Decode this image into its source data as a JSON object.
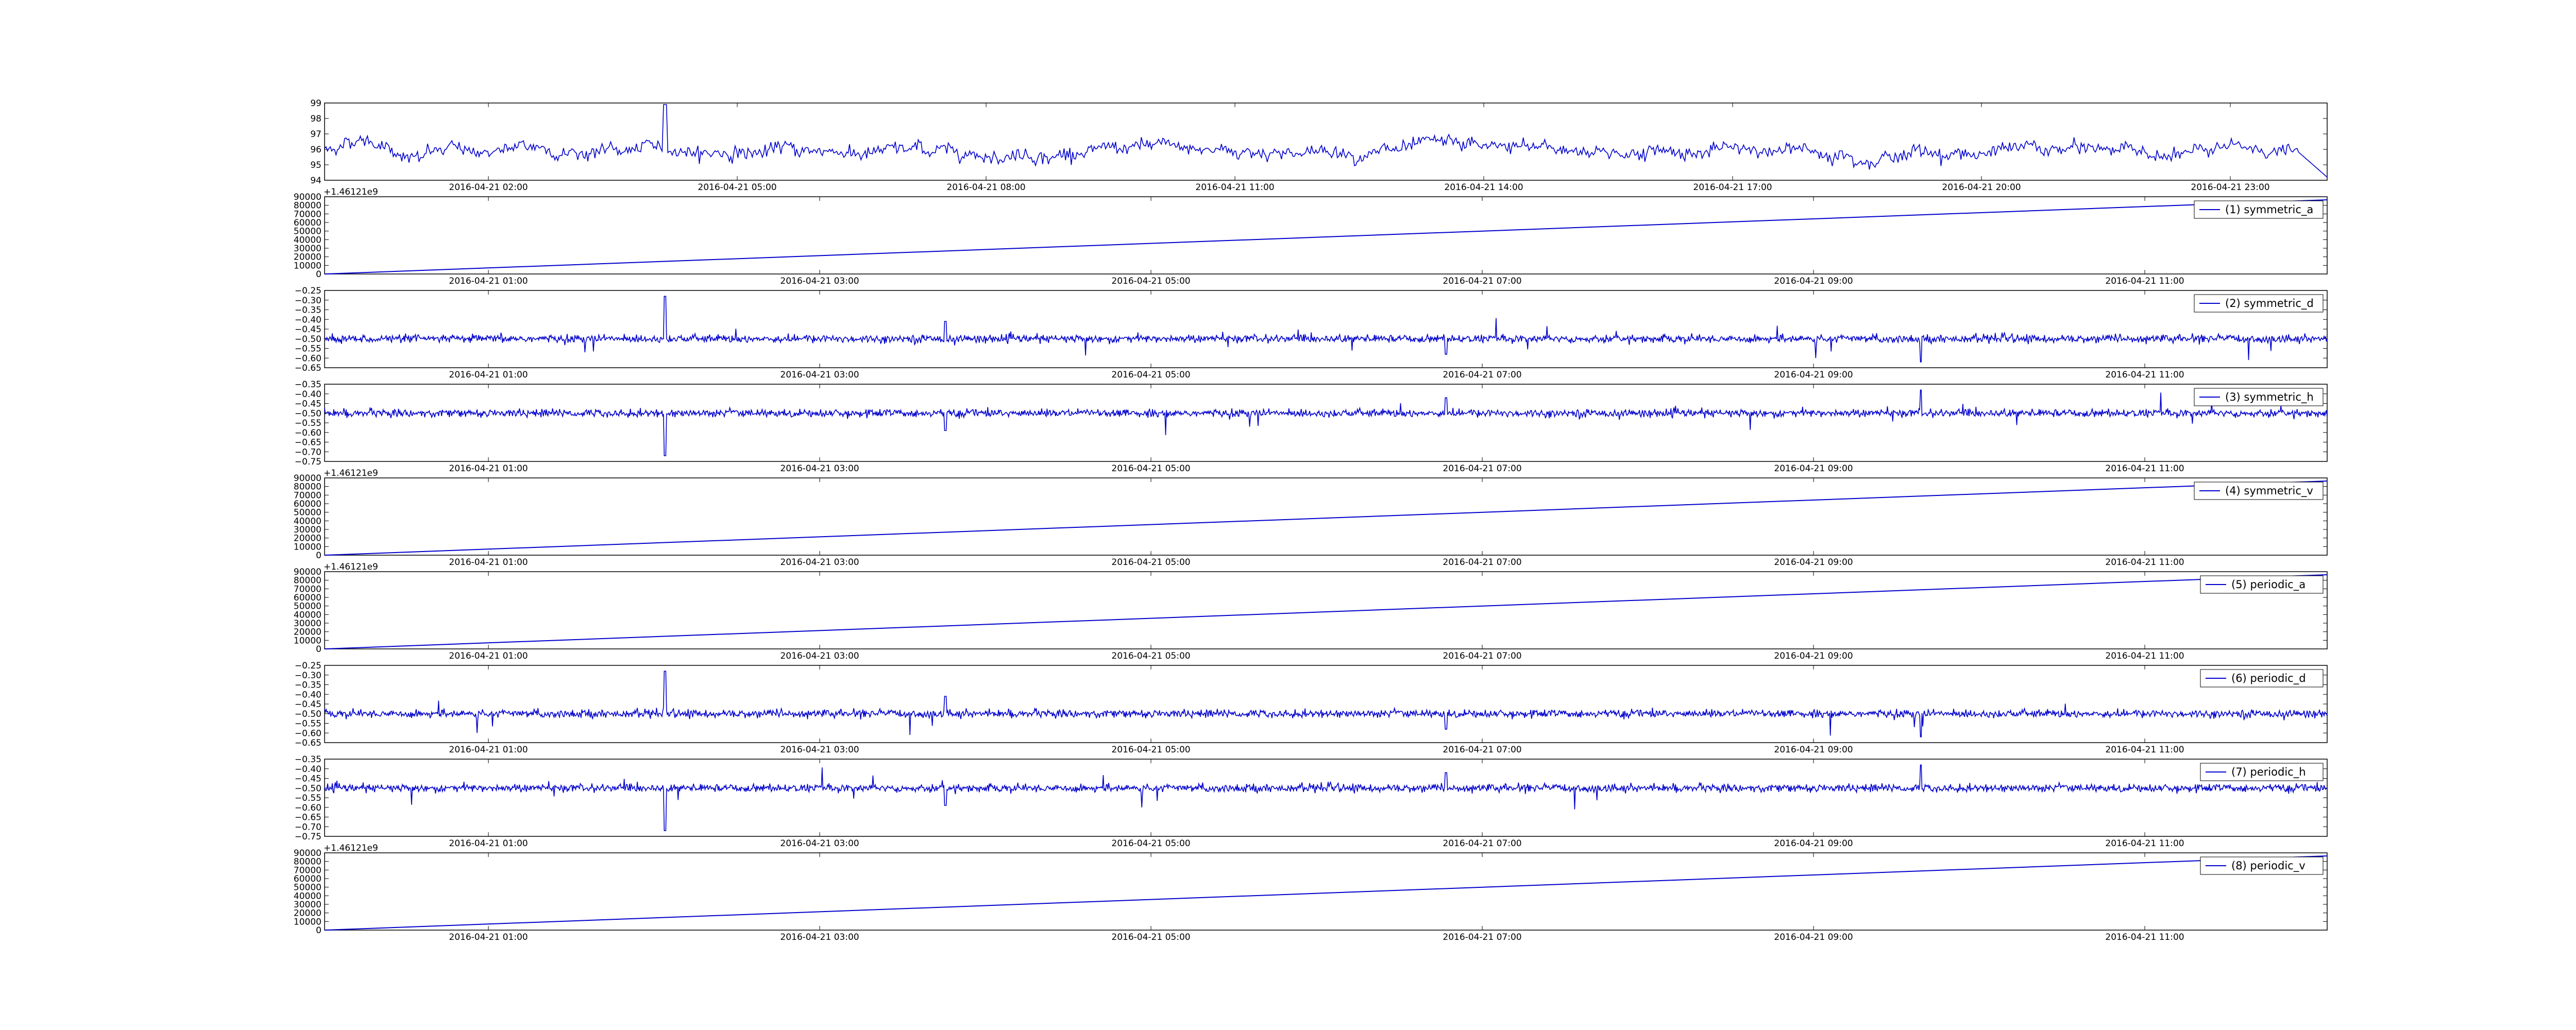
{
  "chart_data": [
    {
      "type": "line",
      "series_color": "#0000cc",
      "y_ticks": [
        "94",
        "95",
        "96",
        "97",
        "98",
        "99"
      ],
      "ylim": [
        94,
        99
      ],
      "x_tick_labels": [
        "2016-04-21 02:00",
        "2016-04-21 05:00",
        "2016-04-21 08:00",
        "2016-04-21 11:00",
        "2016-04-21 14:00",
        "2016-04-21 17:00",
        "2016-04-21 20:00",
        "2016-04-21 23:00"
      ],
      "signal": {
        "kind": "noisy-level",
        "base": 95.9,
        "amplitude": 0.55,
        "spike_at": 0.17,
        "spike_value": 98.9,
        "end_dip": 94.2
      }
    },
    {
      "type": "line",
      "series_color": "#0000cc",
      "y_ticks": [
        "0",
        "10000",
        "20000",
        "30000",
        "40000",
        "50000",
        "60000",
        "70000",
        "80000",
        "90000"
      ],
      "ylim": [
        0,
        90000
      ],
      "offset_text": "+1.46121e9",
      "x_tick_labels": [
        "2016-04-21 01:00",
        "2016-04-21 03:00",
        "2016-04-21 05:00",
        "2016-04-21 07:00",
        "2016-04-21 09:00",
        "2016-04-21 11:00"
      ],
      "legend": "(1) symmetric_a",
      "signal": {
        "kind": "ramp",
        "start": 0,
        "end": 86400
      }
    },
    {
      "type": "line",
      "series_color": "#0000cc",
      "y_ticks": [
        "−0.25",
        "−0.30",
        "−0.35",
        "−0.40",
        "−0.45",
        "−0.50",
        "−0.55",
        "−0.60",
        "−0.65"
      ],
      "ylim": [
        -0.65,
        -0.25
      ],
      "x_tick_labels": [
        "2016-04-21 01:00",
        "2016-04-21 03:00",
        "2016-04-21 05:00",
        "2016-04-21 07:00",
        "2016-04-21 09:00",
        "2016-04-21 11:00"
      ],
      "legend": "(2) symmetric_d",
      "signal": {
        "kind": "noise",
        "base": -0.5,
        "amplitude": 0.02,
        "spikes": [
          [
            0.17,
            -0.28
          ],
          [
            0.31,
            -0.41
          ],
          [
            0.56,
            -0.58
          ],
          [
            0.797,
            -0.62
          ]
        ]
      }
    },
    {
      "type": "line",
      "series_color": "#0000cc",
      "y_ticks": [
        "−0.35",
        "−0.40",
        "−0.45",
        "−0.50",
        "−0.55",
        "−0.60",
        "−0.65",
        "−0.70",
        "−0.75"
      ],
      "ylim": [
        -0.75,
        -0.35
      ],
      "x_tick_labels": [
        "2016-04-21 01:00",
        "2016-04-21 03:00",
        "2016-04-21 05:00",
        "2016-04-21 07:00",
        "2016-04-21 09:00",
        "2016-04-21 11:00"
      ],
      "legend": "(3) symmetric_h",
      "signal": {
        "kind": "noise",
        "base": -0.5,
        "amplitude": 0.02,
        "spikes": [
          [
            0.17,
            -0.72
          ],
          [
            0.31,
            -0.59
          ],
          [
            0.56,
            -0.42
          ],
          [
            0.797,
            -0.38
          ]
        ]
      }
    },
    {
      "type": "line",
      "series_color": "#0000cc",
      "y_ticks": [
        "0",
        "10000",
        "20000",
        "30000",
        "40000",
        "50000",
        "60000",
        "70000",
        "80000",
        "90000"
      ],
      "ylim": [
        0,
        90000
      ],
      "offset_text": "+1.46121e9",
      "x_tick_labels": [
        "2016-04-21 01:00",
        "2016-04-21 03:00",
        "2016-04-21 05:00",
        "2016-04-21 07:00",
        "2016-04-21 09:00",
        "2016-04-21 11:00"
      ],
      "legend": "(4) symmetric_v",
      "signal": {
        "kind": "ramp",
        "start": 0,
        "end": 86400
      }
    },
    {
      "type": "line",
      "series_color": "#0000cc",
      "y_ticks": [
        "0",
        "10000",
        "20000",
        "30000",
        "40000",
        "50000",
        "60000",
        "70000",
        "80000",
        "90000"
      ],
      "ylim": [
        0,
        90000
      ],
      "offset_text": "+1.46121e9",
      "x_tick_labels": [
        "2016-04-21 01:00",
        "2016-04-21 03:00",
        "2016-04-21 05:00",
        "2016-04-21 07:00",
        "2016-04-21 09:00",
        "2016-04-21 11:00"
      ],
      "legend": "(5) periodic_a",
      "signal": {
        "kind": "ramp",
        "start": 0,
        "end": 86400
      }
    },
    {
      "type": "line",
      "series_color": "#0000cc",
      "y_ticks": [
        "−0.25",
        "−0.30",
        "−0.35",
        "−0.40",
        "−0.45",
        "−0.50",
        "−0.55",
        "−0.60",
        "−0.65"
      ],
      "ylim": [
        -0.65,
        -0.25
      ],
      "x_tick_labels": [
        "2016-04-21 01:00",
        "2016-04-21 03:00",
        "2016-04-21 05:00",
        "2016-04-21 07:00",
        "2016-04-21 09:00",
        "2016-04-21 11:00"
      ],
      "legend": "(6) periodic_d",
      "signal": {
        "kind": "noise",
        "base": -0.5,
        "amplitude": 0.02,
        "spikes": [
          [
            0.17,
            -0.28
          ],
          [
            0.31,
            -0.41
          ],
          [
            0.56,
            -0.58
          ],
          [
            0.797,
            -0.62
          ]
        ]
      }
    },
    {
      "type": "line",
      "series_color": "#0000cc",
      "y_ticks": [
        "−0.35",
        "−0.40",
        "−0.45",
        "−0.50",
        "−0.55",
        "−0.60",
        "−0.65",
        "−0.70",
        "−0.75"
      ],
      "ylim": [
        -0.75,
        -0.35
      ],
      "x_tick_labels": [
        "2016-04-21 01:00",
        "2016-04-21 03:00",
        "2016-04-21 05:00",
        "2016-04-21 07:00",
        "2016-04-21 09:00",
        "2016-04-21 11:00"
      ],
      "legend": "(7) periodic_h",
      "signal": {
        "kind": "noise",
        "base": -0.5,
        "amplitude": 0.02,
        "spikes": [
          [
            0.17,
            -0.72
          ],
          [
            0.31,
            -0.59
          ],
          [
            0.56,
            -0.42
          ],
          [
            0.797,
            -0.38
          ]
        ]
      }
    },
    {
      "type": "line",
      "series_color": "#0000cc",
      "y_ticks": [
        "0",
        "10000",
        "20000",
        "30000",
        "40000",
        "50000",
        "60000",
        "70000",
        "80000",
        "90000"
      ],
      "ylim": [
        0,
        90000
      ],
      "offset_text": "+1.46121e9",
      "x_tick_labels": [
        "2016-04-21 01:00",
        "2016-04-21 03:00",
        "2016-04-21 05:00",
        "2016-04-21 07:00",
        "2016-04-21 09:00",
        "2016-04-21 11:00"
      ],
      "legend": "(8) periodic_v",
      "signal": {
        "kind": "ramp",
        "start": 0,
        "end": 86400
      }
    }
  ]
}
